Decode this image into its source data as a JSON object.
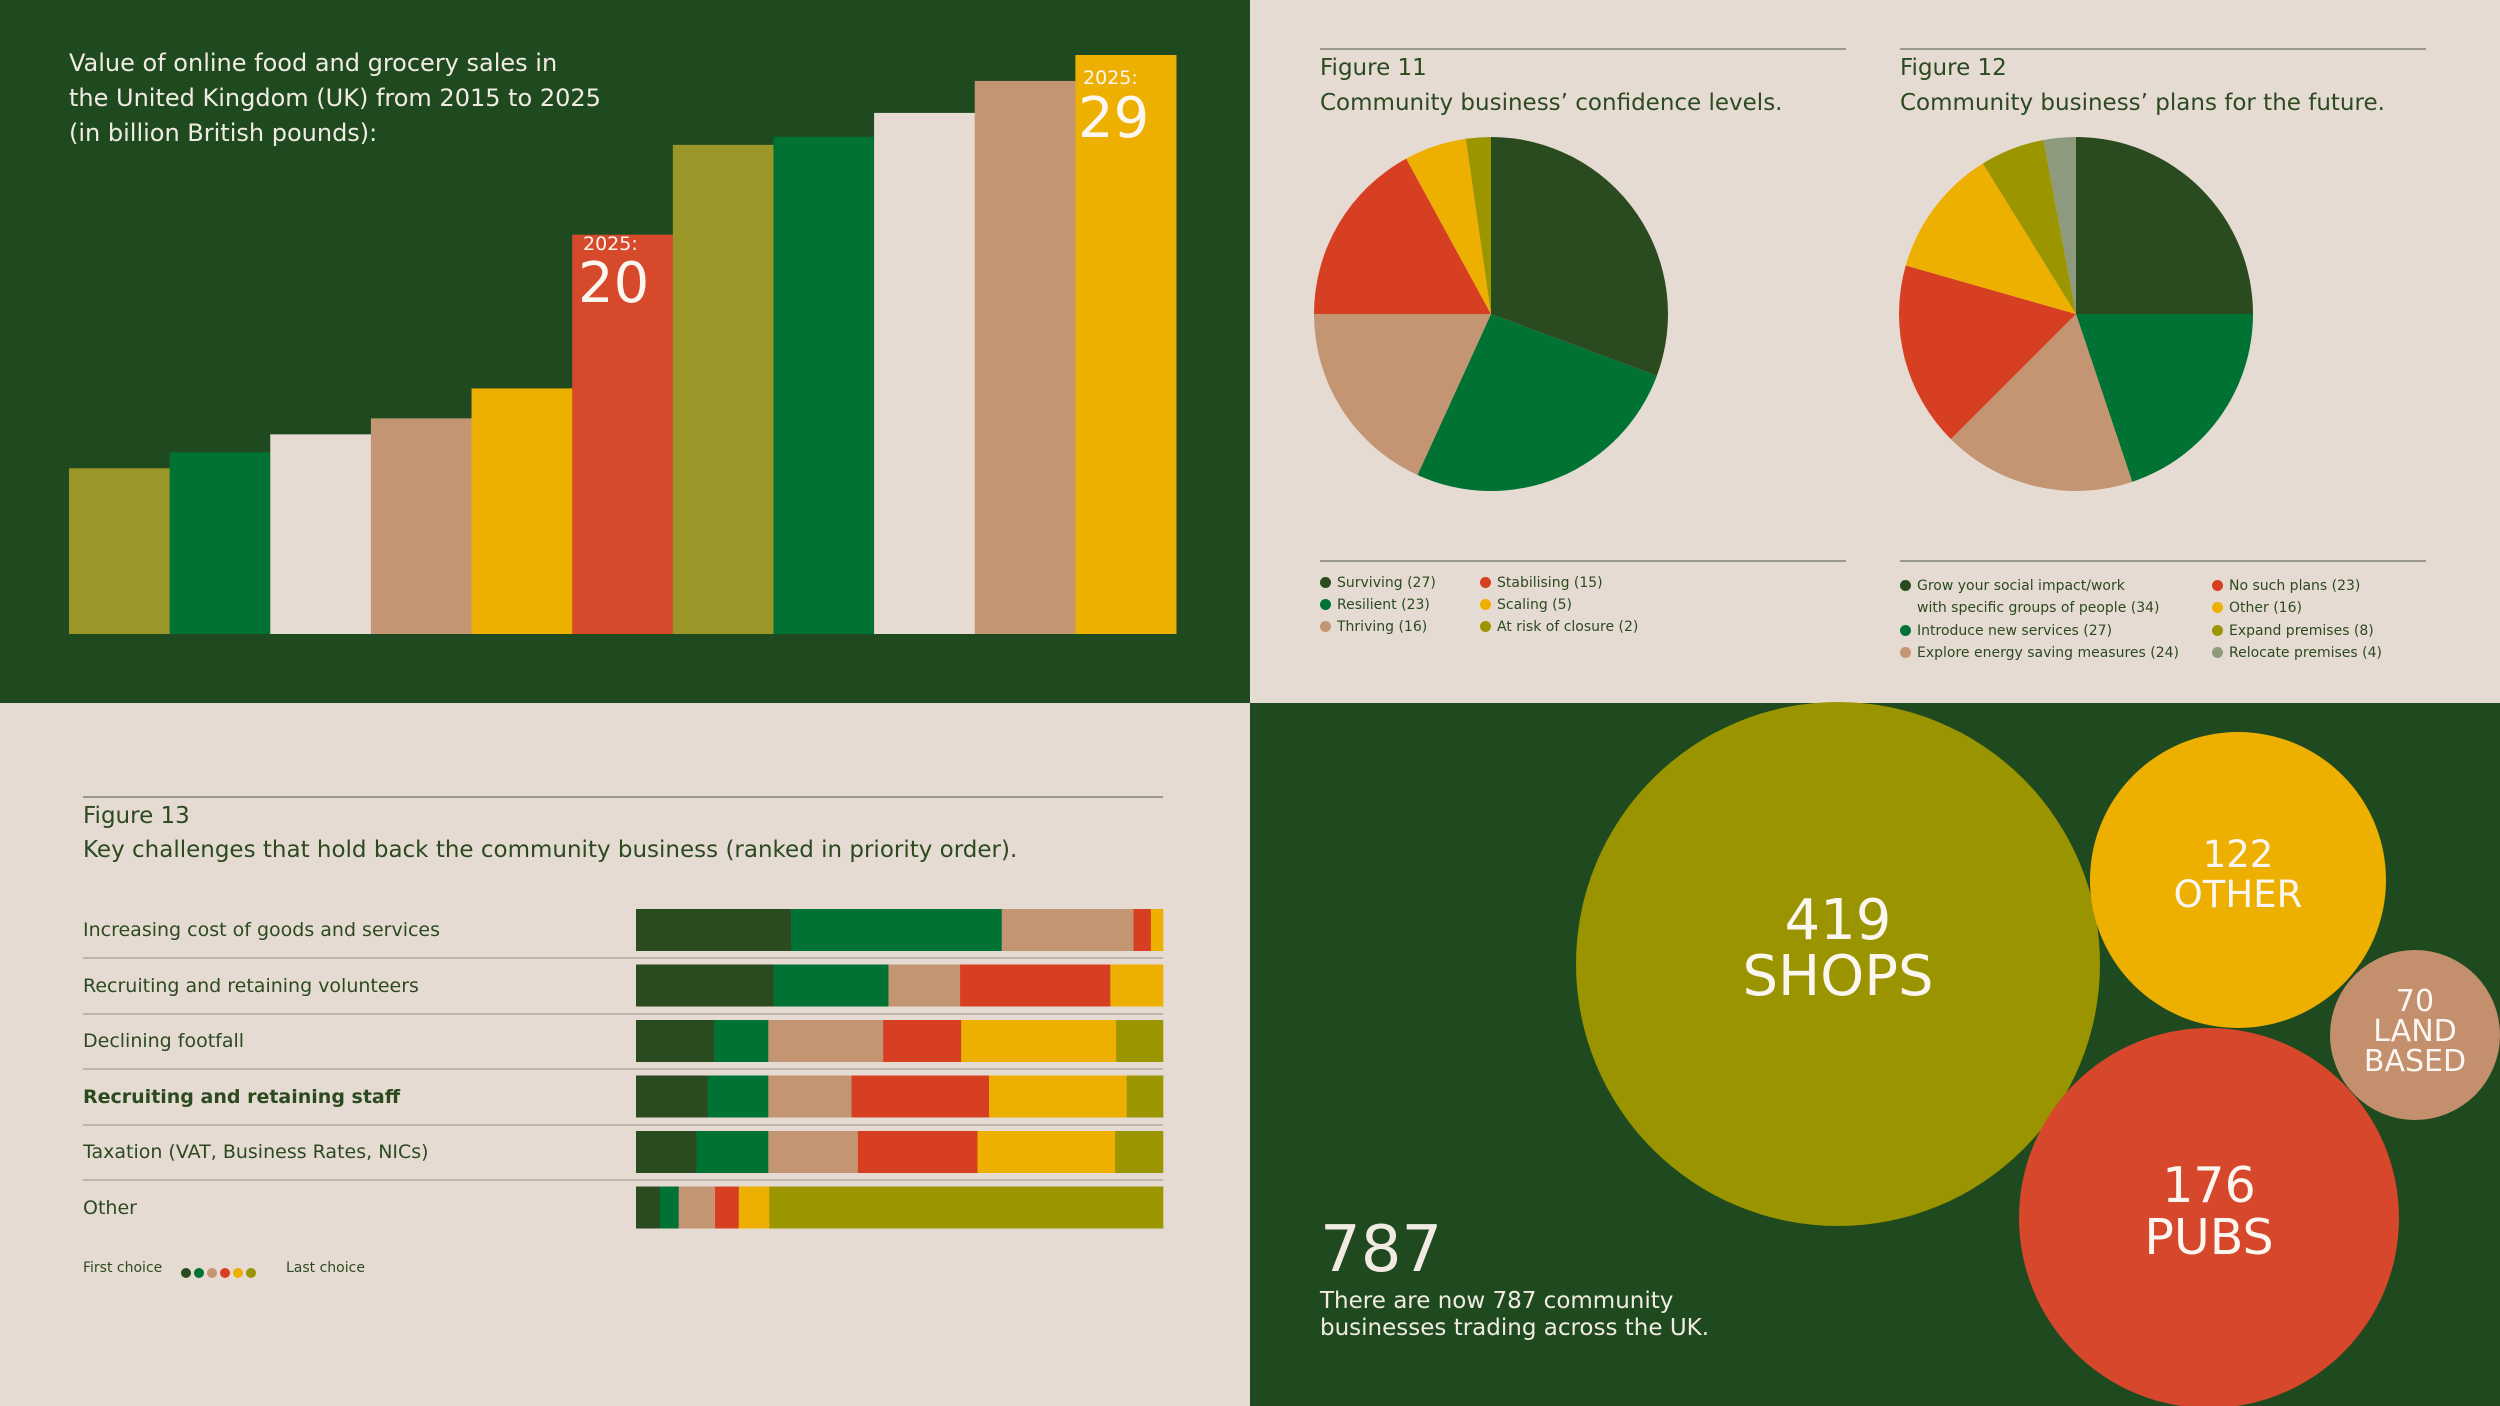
{
  "bar_chart": {
    "title_lines": [
      "Value of online food and grocery sales in",
      "the United Kingdom (UK) from 2015 to 2025",
      "(in billion British pounds):"
    ],
    "annotations": [
      {
        "prefix": "2025:",
        "value": "20"
      },
      {
        "prefix": "2025:",
        "value": "29"
      }
    ]
  },
  "figure11": {
    "number": "Figure 11",
    "caption": "Community business’ confidence levels."
  },
  "figure12": {
    "number": "Figure 12",
    "caption": "Community business’ plans for the future."
  },
  "figure13": {
    "number": "Figure 13",
    "caption": "Key challenges that hold back the community business (ranked in priority order).",
    "legend_first": "First choice",
    "legend_last": "Last choice"
  },
  "summary": {
    "total": "787",
    "description": "There are now 787 community businesses trading across the UK."
  },
  "colors": {
    "dark_green": "#2a4a1f",
    "green": "#007234",
    "tan": "#c49572",
    "red": "#d63f21",
    "yellow": "#eeb000",
    "olive": "#9b9600",
    "cream": "#e6dbd2",
    "grey_green": "#8d9a7e",
    "bg_dark": "#1f4a1f"
  },
  "chart_data": [
    {
      "type": "bar",
      "title": "Value of online food and grocery sales in the United Kingdom (UK) from 2015 to 2025 (in billion British pounds):",
      "categories": [
        "",
        "",
        "",
        "",
        "",
        "",
        "",
        "",
        "",
        "",
        ""
      ],
      "values": [
        8.3,
        9.1,
        10.0,
        10.8,
        12.3,
        20.0,
        24.5,
        24.9,
        26.1,
        27.7,
        29.0
      ],
      "bar_colors": [
        "#9b9628",
        "#007234",
        "#e6dbd2",
        "#c49572",
        "#eeb000",
        "#d64a2b",
        "#9b9628",
        "#007234",
        "#e6dbd2",
        "#c49572",
        "#eeb000"
      ],
      "data_labels": [
        {
          "index": 5,
          "text": "2025: 20"
        },
        {
          "index": 10,
          "text": "2025: 29"
        }
      ]
    },
    {
      "type": "pie",
      "title": "Community business’ confidence levels.",
      "slices": [
        {
          "label": "Surviving (27)",
          "value": 27,
          "color": "#2a4a1f"
        },
        {
          "label": "Resilient (23)",
          "value": 23,
          "color": "#007234"
        },
        {
          "label": "Thriving (16)",
          "value": 16,
          "color": "#c49572"
        },
        {
          "label": "Stabilising (15)",
          "value": 15,
          "color": "#d63f21"
        },
        {
          "label": "Scaling (5)",
          "value": 5,
          "color": "#eeb000"
        },
        {
          "label": "At risk of closure (2)",
          "value": 2,
          "color": "#9b9600"
        }
      ],
      "legend_order": [
        0,
        3,
        1,
        4,
        2,
        5
      ]
    },
    {
      "type": "pie",
      "title": "Community business’ plans for the future.",
      "slices": [
        {
          "label": "Grow your social impact/work with specific groups of people (34)",
          "label_lines": [
            "Grow your social impact/work",
            "with specific groups of people (34)"
          ],
          "value": 34,
          "color": "#2a4a1f"
        },
        {
          "label": "Introduce new services (27)",
          "value": 27,
          "color": "#007234"
        },
        {
          "label": "Explore energy saving measures (24)",
          "value": 24,
          "color": "#c49572"
        },
        {
          "label": "No such plans (23)",
          "value": 23,
          "color": "#d63f21"
        },
        {
          "label": "Other (16)",
          "value": 16,
          "color": "#eeb000"
        },
        {
          "label": "Expand premises (8)",
          "value": 8,
          "color": "#9b9600"
        },
        {
          "label": "Relocate premises (4)",
          "value": 4,
          "color": "#8d9a7e"
        }
      ]
    },
    {
      "type": "stacked_bar",
      "title": "Key challenges that hold back the community business (ranked in priority order).",
      "categories": [
        "Increasing cost of goods and services",
        "Recruiting and retaining volunteers",
        "Declining footfall",
        "Recruiting and retaining staff",
        "Taxation (VAT, Business Rates, NICs)",
        "Other"
      ],
      "bold_index": 3,
      "rank_colors": [
        "#2a4a1f",
        "#007234",
        "#c49572",
        "#d63f21",
        "#eeb000",
        "#9b9600"
      ],
      "shares": [
        [
          29.4,
          40.0,
          25.0,
          3.3,
          2.3,
          0.0
        ],
        [
          26.1,
          21.8,
          13.6,
          28.5,
          10.0,
          0.0
        ],
        [
          14.8,
          10.3,
          21.8,
          14.8,
          29.4,
          8.9
        ],
        [
          13.6,
          11.5,
          15.8,
          26.1,
          26.1,
          6.9
        ],
        [
          11.5,
          13.6,
          17.0,
          22.7,
          26.1,
          9.1
        ],
        [
          4.5,
          3.6,
          6.9,
          4.5,
          5.8,
          74.7
        ]
      ]
    },
    {
      "type": "bubble",
      "bubbles": [
        {
          "value": 419,
          "label": "SHOPS",
          "color": "#999400"
        },
        {
          "value": 122,
          "label": "OTHER",
          "color": "#eeb000"
        },
        {
          "value": 70,
          "label_lines": [
            "LAND",
            "BASED"
          ],
          "color": "#c38f6d"
        },
        {
          "value": 176,
          "label": "PUBS",
          "color": "#d6472b"
        }
      ]
    }
  ]
}
